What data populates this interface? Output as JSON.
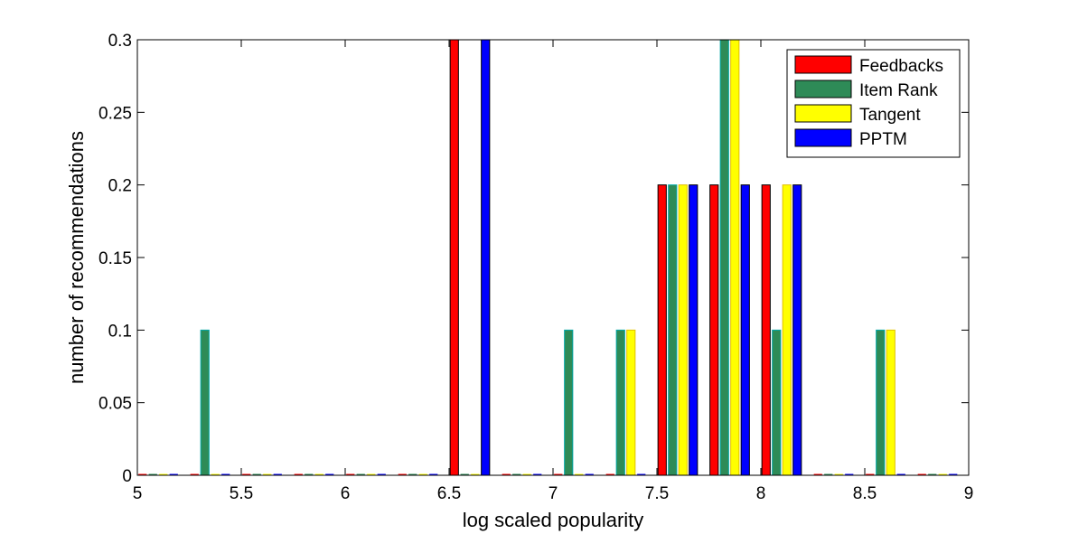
{
  "chart_data": {
    "type": "bar",
    "xlabel": "log scaled popularity",
    "ylabel": "number of recommendations",
    "xlim": [
      5,
      9
    ],
    "ylim": [
      0,
      0.3
    ],
    "xticks": [
      "5",
      "5.5",
      "6",
      "6.5",
      "7",
      "7.5",
      "8",
      "8.5",
      "9"
    ],
    "yticks": [
      "0",
      "0.05",
      "0.1",
      "0.15",
      "0.2",
      "0.25",
      "0.3"
    ],
    "grid": false,
    "legend_position": "top-right",
    "bin_centers": [
      5.1,
      5.35,
      5.6,
      5.85,
      6.1,
      6.35,
      6.6,
      6.85,
      7.1,
      7.35,
      7.6,
      7.85,
      8.1,
      8.35,
      8.6,
      8.85
    ],
    "series": [
      {
        "name": "Feedbacks",
        "color": "#ff0000",
        "values": [
          0,
          0,
          0,
          0,
          0,
          0,
          0.3,
          0,
          0,
          0,
          0.2,
          0.2,
          0.2,
          0,
          0,
          0
        ]
      },
      {
        "name": "Item Rank",
        "color": "#2e8b57",
        "values": [
          0,
          0.1,
          0,
          0,
          0,
          0,
          0,
          0,
          0.1,
          0.1,
          0.2,
          0.3,
          0.1,
          0,
          0.1,
          0
        ]
      },
      {
        "name": "Tangent",
        "color": "#ffff00",
        "values": [
          0,
          0,
          0,
          0,
          0,
          0,
          0,
          0,
          0,
          0.1,
          0.2,
          0.3,
          0.2,
          0,
          0.1,
          0
        ]
      },
      {
        "name": "PPTM",
        "color": "#0000ff",
        "values": [
          0,
          0,
          0,
          0,
          0,
          0,
          0.3,
          0,
          0,
          0,
          0.2,
          0.2,
          0.2,
          0,
          0,
          0
        ]
      }
    ]
  }
}
